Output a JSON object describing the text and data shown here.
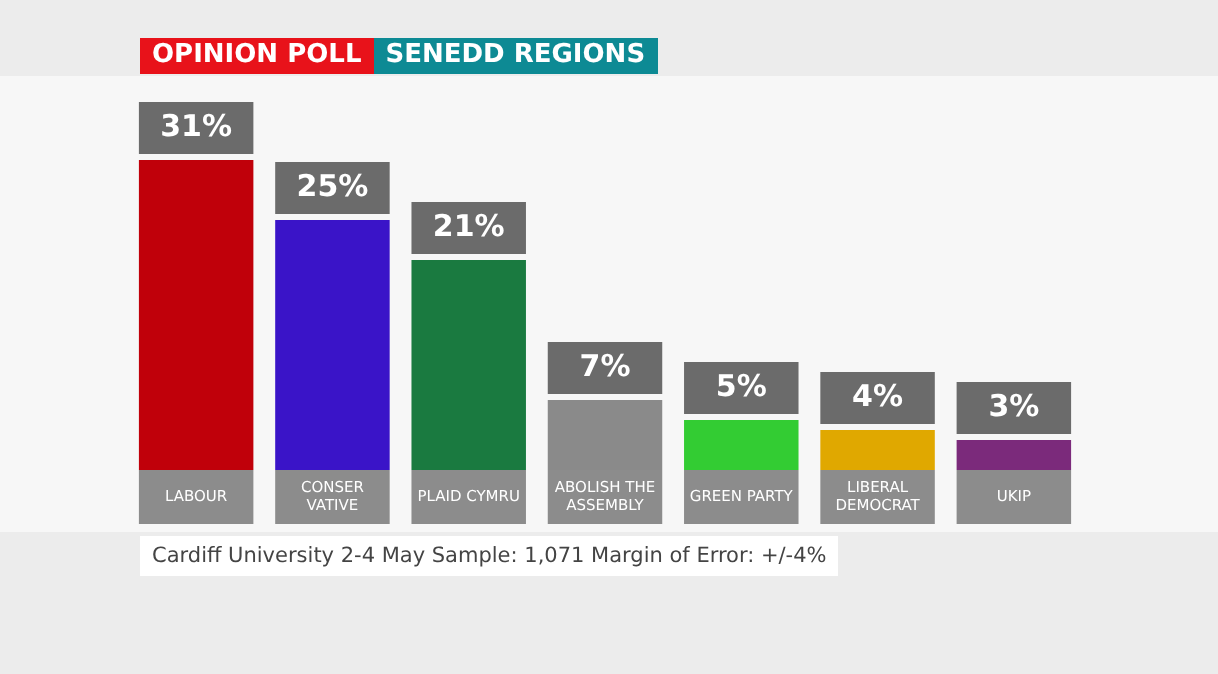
{
  "chart_data": {
    "type": "bar",
    "title": "OPINION POLL",
    "subtitle": "SENEDD REGIONS",
    "categories": [
      "LABOUR",
      "CONSER VATIVE",
      "PLAID CYMRU",
      "ABOLISH THE ASSEMBLY",
      "GREEN PARTY",
      "LIBERAL DEMOCRAT",
      "UKIP"
    ],
    "values": [
      31,
      25,
      21,
      7,
      5,
      4,
      3
    ],
    "colors": [
      "#c0000a",
      "#3a14c8",
      "#1a7a40",
      "#8a8a8a",
      "#33cc33",
      "#e0a800",
      "#7b2a7b"
    ],
    "value_labels": [
      "31%",
      "25%",
      "21%",
      "7%",
      "5%",
      "4%",
      "3%"
    ],
    "annotations": [
      "Cardiff University 2-4 May Sample: 1,071 Margin of Error: +/-4%"
    ]
  }
}
